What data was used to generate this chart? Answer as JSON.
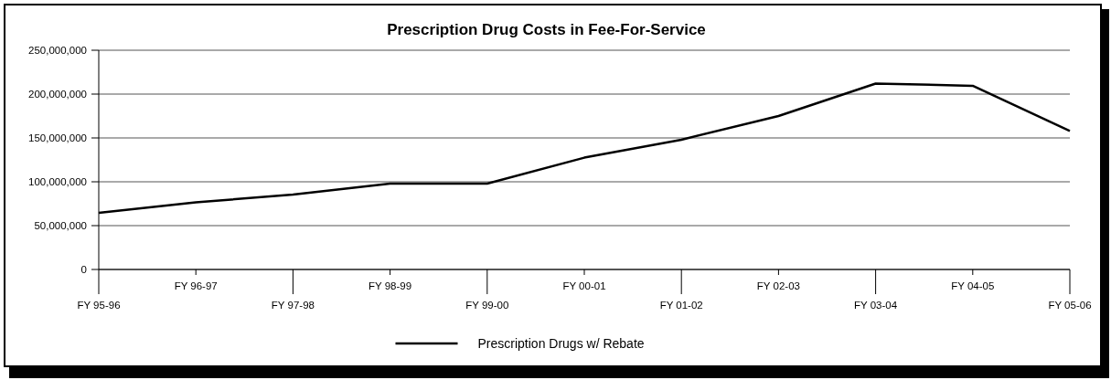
{
  "chart_data": {
    "type": "line",
    "title": "Prescription Drug Costs in Fee-For-Service",
    "categories": [
      "FY 95-96",
      "FY 96-97",
      "FY 97-98",
      "FY 98-99",
      "FY 99-00",
      "FY 00-01",
      "FY 01-02",
      "FY 02-03",
      "FY 03-04",
      "FY 04-05",
      "FY 05-06"
    ],
    "series": [
      {
        "name": "Prescription Drugs w/ Rebate",
        "color": "#000000",
        "values": [
          64500000,
          76500000,
          85500000,
          98000000,
          98000000,
          127500000,
          148000000,
          175000000,
          212000000,
          209500000,
          158000000
        ]
      }
    ],
    "ylim": [
      0,
      250000000
    ],
    "yticks": [
      {
        "value": 0,
        "label": "0"
      },
      {
        "value": 50000000,
        "label": "50,000,000"
      },
      {
        "value": 100000000,
        "label": "100,000,000"
      },
      {
        "value": 150000000,
        "label": "150,000,000"
      },
      {
        "value": 200000000,
        "label": "200,000,000"
      },
      {
        "value": 250000000,
        "label": "250,000,000"
      }
    ],
    "grid": "y",
    "legend": "bottom",
    "marker": "none",
    "line_style": "solid"
  }
}
